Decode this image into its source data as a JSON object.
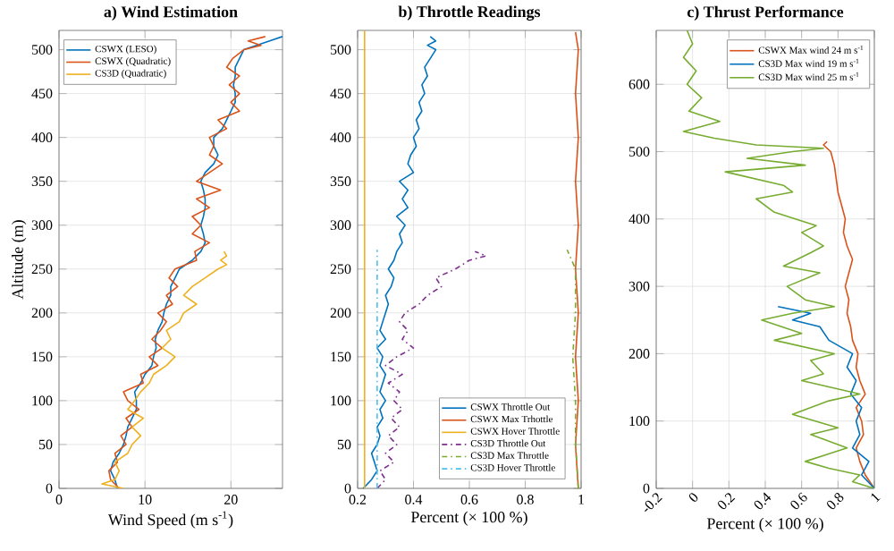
{
  "chart_data": [
    {
      "type": "line",
      "title": "a) Wind Estimation",
      "xlabel": "Wind Speed (m s$^{-1}$)",
      "ylabel": "Altitude (m)",
      "xlim": [
        0,
        26
      ],
      "ylim": [
        0,
        522
      ],
      "xticks": [
        0,
        10,
        20
      ],
      "yticks": [
        0,
        50,
        100,
        150,
        200,
        250,
        300,
        350,
        400,
        450,
        500
      ],
      "grid": true,
      "legend": "top left",
      "series": [
        {
          "name": "CSWX (LESO)",
          "color": "#0072bd",
          "line_style": "solid",
          "x": [
            6.8,
            6.5,
            6.0,
            6.3,
            7.0,
            7.5,
            7.8,
            8.0,
            8.5,
            9.0,
            9.0,
            8.8,
            9.5,
            10.0,
            10.8,
            11.0,
            11.3,
            11.2,
            11.5,
            12.0,
            12.2,
            12.5,
            13.0,
            13.0,
            13.5,
            14.0,
            15.5,
            16.5,
            17.0,
            16.8,
            16.5,
            16.8,
            17.0,
            17.0,
            16.8,
            16.5,
            17.0,
            18.0,
            18.5,
            18.0,
            18.0,
            19.0,
            19.5,
            20.0,
            20.5,
            20.5,
            20.3,
            20.5,
            20.5,
            21.0,
            21.5,
            23.0,
            24.5,
            26.0
          ],
          "values": [
            0,
            10,
            20,
            30,
            40,
            50,
            60,
            70,
            80,
            90,
            100,
            110,
            120,
            130,
            140,
            150,
            160,
            170,
            180,
            190,
            200,
            210,
            220,
            230,
            240,
            250,
            260,
            270,
            280,
            290,
            300,
            310,
            320,
            330,
            340,
            350,
            360,
            370,
            380,
            390,
            400,
            410,
            420,
            430,
            440,
            450,
            460,
            470,
            480,
            490,
            500,
            505,
            510,
            515
          ]
        },
        {
          "name": "CSWX (Quadratic)",
          "color": "#d95319",
          "line_style": "solid",
          "x": [
            7.0,
            6.0,
            5.8,
            6.8,
            6.5,
            7.8,
            7.2,
            8.5,
            7.8,
            9.3,
            8.0,
            7.5,
            9.8,
            9.5,
            11.5,
            10.5,
            12.0,
            10.8,
            11.8,
            12.5,
            11.5,
            13.2,
            12.5,
            13.8,
            12.8,
            13.5,
            16.0,
            15.8,
            17.5,
            15.5,
            16.5,
            15.5,
            17.5,
            16.0,
            18.8,
            16.0,
            17.5,
            19.0,
            17.5,
            18.0,
            17.5,
            19.5,
            18.5,
            21.0,
            20.0,
            21.0,
            19.8,
            21.0,
            19.5,
            20.2,
            21.5,
            23.5,
            22.0,
            24.0
          ],
          "values": [
            0,
            10,
            20,
            30,
            40,
            50,
            60,
            70,
            80,
            90,
            100,
            110,
            120,
            130,
            140,
            150,
            160,
            170,
            180,
            190,
            200,
            210,
            220,
            230,
            240,
            250,
            260,
            270,
            280,
            290,
            300,
            310,
            320,
            330,
            340,
            350,
            360,
            370,
            380,
            390,
            400,
            410,
            420,
            430,
            440,
            450,
            460,
            470,
            480,
            490,
            500,
            505,
            510,
            515
          ]
        },
        {
          "name": "CS3D (Quadratic)",
          "color": "#edb120",
          "line_style": "solid",
          "x": [
            7.5,
            5.0,
            6.5,
            7.0,
            6.5,
            8.0,
            8.5,
            9.5,
            8.5,
            9.8,
            8.0,
            8.8,
            9.5,
            10.5,
            11.0,
            12.5,
            13.5,
            12.0,
            13.0,
            12.5,
            14.0,
            14.5,
            16.0,
            14.5,
            15.5,
            17.0,
            18.5,
            19.5,
            18.8,
            19.5,
            19.2
          ],
          "values": [
            0,
            5,
            10,
            20,
            30,
            40,
            50,
            60,
            70,
            80,
            90,
            100,
            110,
            120,
            130,
            140,
            150,
            160,
            170,
            180,
            190,
            200,
            210,
            220,
            230,
            240,
            250,
            255,
            260,
            265,
            270
          ]
        }
      ]
    },
    {
      "type": "line",
      "title": "b) Throttle Readings",
      "xlabel": "Percent (× 100 %)",
      "xlim": [
        0.2,
        1
      ],
      "ylim": [
        0,
        522
      ],
      "xticks": [
        0.2,
        0.4,
        0.6,
        0.8,
        1
      ],
      "yticks": [
        0,
        50,
        100,
        150,
        200,
        250,
        300,
        350,
        400,
        450,
        500
      ],
      "grid": true,
      "legend": "bottom right",
      "series": [
        {
          "name": "CSWX Throttle Out",
          "color": "#0072bd",
          "line_style": "solid",
          "x": [
            0.22,
            0.25,
            0.27,
            0.26,
            0.25,
            0.27,
            0.28,
            0.27,
            0.29,
            0.28,
            0.3,
            0.28,
            0.29,
            0.3,
            0.28,
            0.29,
            0.27,
            0.3,
            0.28,
            0.29,
            0.3,
            0.31,
            0.3,
            0.32,
            0.33,
            0.31,
            0.33,
            0.34,
            0.36,
            0.35,
            0.37,
            0.34,
            0.38,
            0.36,
            0.38,
            0.35,
            0.4,
            0.38,
            0.39,
            0.41,
            0.4,
            0.42,
            0.41,
            0.43,
            0.42,
            0.44,
            0.43,
            0.45,
            0.44,
            0.46,
            0.48,
            0.45,
            0.48,
            0.46
          ],
          "values": [
            0,
            10,
            20,
            30,
            40,
            50,
            60,
            70,
            80,
            90,
            100,
            110,
            120,
            130,
            140,
            150,
            160,
            170,
            180,
            190,
            200,
            210,
            220,
            230,
            240,
            250,
            260,
            270,
            280,
            290,
            300,
            310,
            320,
            330,
            340,
            350,
            360,
            370,
            380,
            390,
            400,
            410,
            420,
            430,
            440,
            450,
            460,
            470,
            480,
            490,
            500,
            505,
            510,
            515
          ]
        },
        {
          "name": "CSWX Max Trhottle",
          "color": "#d95319",
          "line_style": "solid",
          "x": [
            0.99,
            0.98,
            0.99,
            0.98,
            0.99,
            0.98,
            0.99,
            0.98,
            0.99,
            0.98,
            0.99,
            0.98
          ],
          "values": [
            0,
            50,
            100,
            150,
            200,
            250,
            300,
            350,
            400,
            450,
            500,
            520
          ]
        },
        {
          "name": "CSWX Hover Throttle",
          "color": "#edb120",
          "line_style": "solid",
          "x": [
            0.225,
            0.225
          ],
          "values": [
            0,
            522
          ]
        },
        {
          "name": "CS3D Throttle Out",
          "color": "#7e2f8e",
          "line_style": "dashdot",
          "x": [
            0.27,
            0.3,
            0.28,
            0.33,
            0.3,
            0.34,
            0.31,
            0.35,
            0.32,
            0.36,
            0.33,
            0.35,
            0.31,
            0.36,
            0.3,
            0.34,
            0.4,
            0.36,
            0.38,
            0.35,
            0.37,
            0.42,
            0.45,
            0.5,
            0.48,
            0.55,
            0.6,
            0.66,
            0.62
          ],
          "values": [
            0,
            10,
            20,
            30,
            40,
            50,
            60,
            70,
            80,
            90,
            100,
            110,
            120,
            130,
            140,
            150,
            160,
            170,
            180,
            190,
            200,
            210,
            220,
            230,
            240,
            250,
            260,
            265,
            270
          ]
        },
        {
          "name": "CS3D Max Throttle",
          "color": "#77ac30",
          "line_style": "dashdot",
          "x": [
            0.99,
            0.98,
            0.98,
            0.97,
            0.98,
            0.98,
            0.95
          ],
          "values": [
            0,
            50,
            100,
            150,
            200,
            250,
            272
          ]
        },
        {
          "name": "CS3D Hover Throttle",
          "color": "#4dbeee",
          "line_style": "dashdot",
          "x": [
            0.27,
            0.27
          ],
          "values": [
            0,
            272
          ]
        }
      ]
    },
    {
      "type": "line",
      "title": "c) Thrust Performance",
      "xlabel": "Percent (× 100 %)",
      "xlim": [
        -0.2,
        1
      ],
      "ylim": [
        0,
        680
      ],
      "xticks": [
        -0.2,
        0,
        0.2,
        0.4,
        0.6,
        0.8,
        1
      ],
      "yticks": [
        0,
        100,
        200,
        300,
        400,
        500,
        600
      ],
      "grid": true,
      "legend": "top right",
      "series": [
        {
          "name": "CSWX Max wind 24 m s$^{-1}$",
          "color": "#d95319",
          "line_style": "solid",
          "x": [
            1.0,
            0.95,
            0.92,
            0.9,
            0.94,
            0.93,
            0.9,
            0.95,
            0.92,
            0.9,
            0.91,
            0.88,
            0.87,
            0.85,
            0.86,
            0.84,
            0.86,
            0.88,
            0.85,
            0.83,
            0.84,
            0.82,
            0.8,
            0.79,
            0.78,
            0.76,
            0.72,
            0.74
          ],
          "values": [
            0,
            20,
            40,
            60,
            80,
            100,
            120,
            140,
            160,
            180,
            200,
            220,
            240,
            260,
            280,
            300,
            320,
            340,
            360,
            380,
            400,
            420,
            440,
            460,
            480,
            500,
            510,
            515
          ]
        },
        {
          "name": "CS3D Max wind 19 m s$^{-1}$",
          "color": "#0072bd",
          "line_style": "solid",
          "x": [
            1.0,
            0.93,
            0.97,
            0.88,
            0.92,
            0.9,
            0.93,
            0.87,
            0.9,
            0.85,
            0.88,
            0.75,
            0.7,
            0.55,
            0.65,
            0.47
          ],
          "values": [
            0,
            20,
            40,
            60,
            80,
            100,
            120,
            140,
            160,
            180,
            200,
            220,
            240,
            250,
            260,
            270
          ]
        },
        {
          "name": "CS3D Max wind 25 m s$^{-1}$",
          "color": "#77ac30",
          "line_style": "solid",
          "x": [
            1.0,
            0.88,
            0.92,
            0.75,
            0.62,
            0.85,
            0.65,
            0.8,
            0.55,
            0.75,
            0.92,
            0.6,
            0.72,
            0.65,
            0.78,
            0.45,
            0.6,
            0.38,
            0.55,
            0.78,
            0.62,
            0.52,
            0.7,
            0.5,
            0.65,
            0.72,
            0.6,
            0.68,
            0.45,
            0.35,
            0.55,
            0.5,
            0.18,
            0.62,
            0.3,
            0.55,
            0.72,
            0.35,
            0.12,
            -0.05,
            0.15,
            -0.02,
            0.05,
            -0.03,
            0.02,
            -0.05,
            0.0,
            -0.03
          ],
          "values": [
            0,
            10,
            20,
            30,
            40,
            60,
            80,
            90,
            110,
            130,
            140,
            160,
            170,
            190,
            200,
            220,
            230,
            250,
            260,
            270,
            280,
            300,
            320,
            330,
            350,
            360,
            380,
            390,
            410,
            430,
            440,
            450,
            470,
            480,
            490,
            500,
            505,
            510,
            520,
            530,
            545,
            560,
            580,
            600,
            620,
            640,
            660,
            680
          ]
        }
      ]
    }
  ]
}
